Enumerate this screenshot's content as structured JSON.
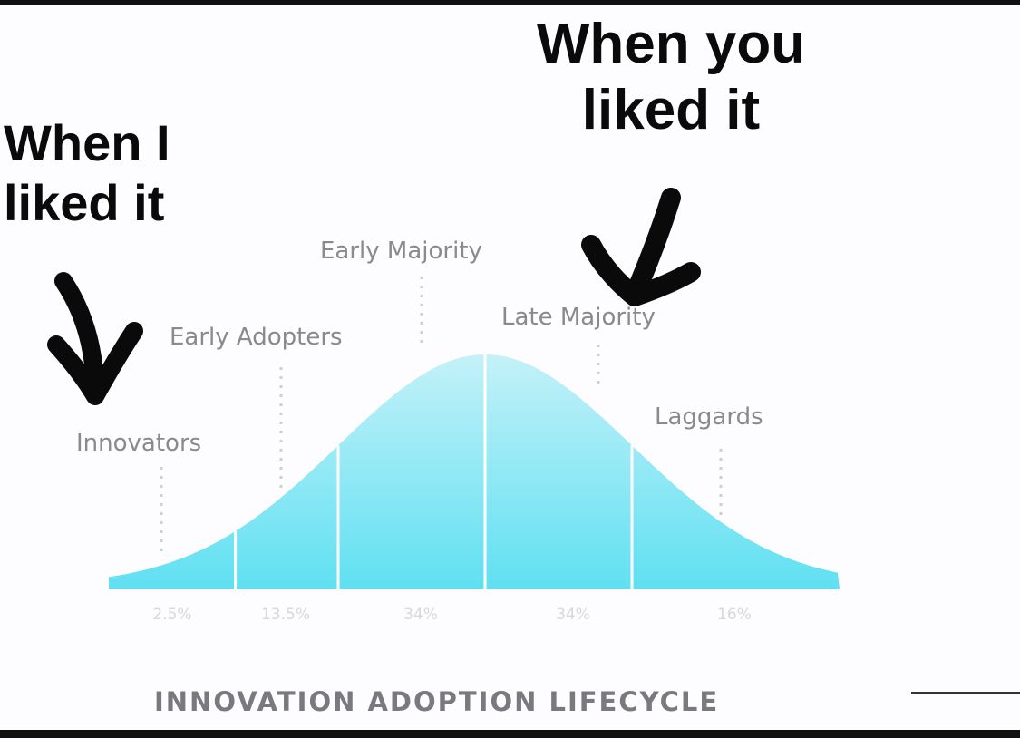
{
  "meme_text": {
    "left_line1": "When I",
    "left_line2": "liked it",
    "right_line1": "When you",
    "right_line2": "liked it"
  },
  "colors": {
    "curve_top": "#c4f1f8",
    "curve_bottom": "#5fe0f2",
    "ink": "#0a0a0a"
  },
  "icons": {
    "left_arrow": "hand-drawn-down-arrow",
    "right_arrow": "hand-drawn-down-arrow"
  },
  "chart_data": {
    "type": "area",
    "title": "INNOVATION ADOPTION LIFECYCLE",
    "distribution": "bell-curve",
    "categories": [
      "Innovators",
      "Early Adopters",
      "Early Majority",
      "Late Majority",
      "Laggards"
    ],
    "values": [
      2.5,
      13.5,
      34,
      34,
      16
    ],
    "value_labels": [
      "2.5%",
      "13.5%",
      "34%",
      "34%",
      "16%"
    ],
    "grid": false
  }
}
